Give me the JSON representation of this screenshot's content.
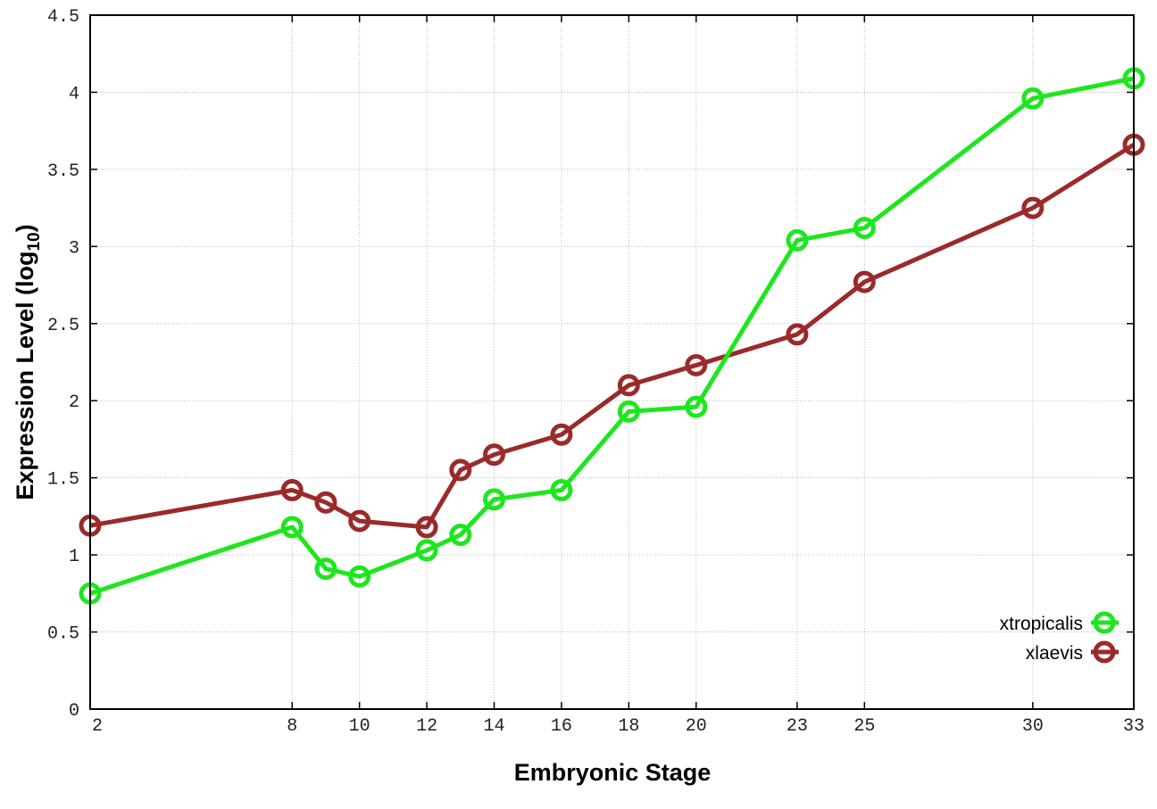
{
  "chart_data": {
    "type": "line",
    "title": "",
    "xlabel": "Embryonic Stage",
    "ylabel": "Expression Level (log",
    "ylabel_subscript": "10",
    "ylabel_close": ")",
    "xlim": [
      2,
      33
    ],
    "ylim": [
      0,
      4.5
    ],
    "xticks": [
      2,
      8,
      10,
      12,
      14,
      16,
      18,
      20,
      23,
      25,
      30,
      33
    ],
    "yticks": [
      0,
      0.5,
      1,
      1.5,
      2,
      2.5,
      3,
      3.5,
      4,
      4.5
    ],
    "ytick_labels": [
      "0",
      "0.5",
      "1",
      "1.5",
      "2",
      "2.5",
      "3",
      "3.5",
      "4",
      "4.5"
    ],
    "grid": true,
    "legend_position": "bottom-right",
    "x": [
      2,
      8,
      9,
      10,
      12,
      13,
      14,
      16,
      18,
      20,
      23,
      25,
      30,
      33
    ],
    "series": [
      {
        "name": "xtropicalis",
        "color": "#1ee61e",
        "values": [
          0.75,
          1.18,
          0.91,
          0.86,
          1.03,
          1.13,
          1.36,
          1.42,
          1.93,
          1.96,
          3.04,
          3.12,
          3.96,
          4.09
        ]
      },
      {
        "name": "xlaevis",
        "color": "#9b2a2a",
        "values": [
          1.19,
          1.42,
          1.34,
          1.22,
          1.18,
          1.55,
          1.65,
          1.78,
          2.1,
          2.23,
          2.43,
          2.77,
          3.25,
          3.66
        ]
      }
    ]
  }
}
